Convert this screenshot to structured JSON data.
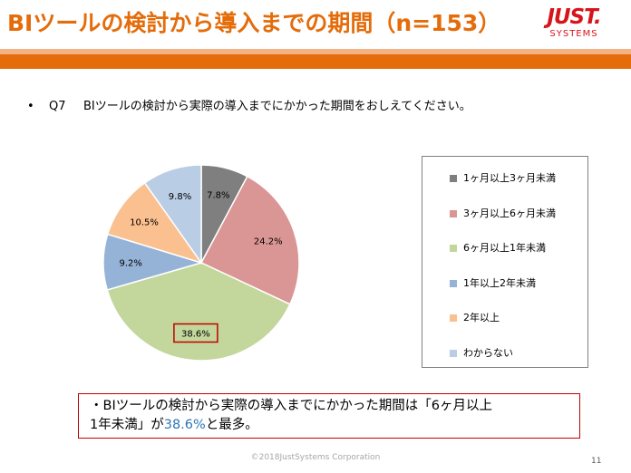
{
  "slide": {
    "title": "BIツールの検討から導入までの期間（n=153）",
    "logo_main": "JUST.",
    "logo_sub": "SYSTEMS"
  },
  "question": {
    "bullet": "•",
    "number": "Q7",
    "text": "BIツールの検討から実際の導入までにかかった期間をおしえてください。"
  },
  "chart_data": {
    "type": "pie",
    "categories": [
      "1ヶ月以上3ヶ月未満",
      "3ヶ月以上6ヶ月未満",
      "6ヶ月以上1年未満",
      "1年以上2年未満",
      "2年以上",
      "わからない"
    ],
    "values": [
      7.8,
      24.2,
      38.6,
      9.2,
      10.5,
      9.8
    ],
    "data_labels": [
      "7.8%",
      "24.2%",
      "38.6%",
      "9.2%",
      "10.5%",
      "9.8%"
    ],
    "colors": [
      "#7F7F7F",
      "#DA9694",
      "#C3D69B",
      "#95B3D7",
      "#FAC090",
      "#B9CDE5"
    ],
    "start_angle_deg": 0,
    "direction": "clockwise",
    "highlighted_slice": 2,
    "highlight_color": "#C00000",
    "legend_position": "right"
  },
  "summary": {
    "line1": "・BIツールの検討から実際の導入までにかかった期間は「6ヶ月以上",
    "line2_before": "1年未満」が",
    "line2_highlight": "38.6%",
    "line2_after": "と最多。"
  },
  "footer": {
    "copyright": "©2018JustSystems Corporation",
    "page_number": "11"
  }
}
